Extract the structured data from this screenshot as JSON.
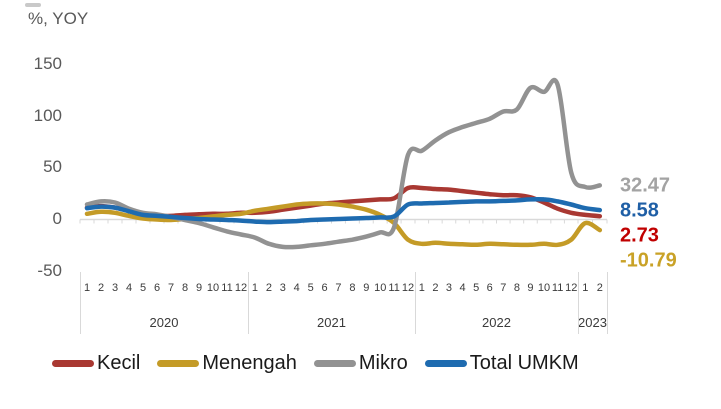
{
  "chart_data": {
    "type": "line",
    "title": "%, YOY",
    "y_ticks": [
      "150",
      "100",
      "50",
      "0",
      "-50"
    ],
    "ylim": [
      -50,
      150
    ],
    "grid": "zero-axis-line-with-month-ticks-only",
    "legend_position": "bottom",
    "x_axis_note": "months grouped by year",
    "year_groups": [
      {
        "label": "2020",
        "months": [
          "1",
          "2",
          "3",
          "4",
          "5",
          "6",
          "7",
          "8",
          "9",
          "10",
          "11",
          "12"
        ]
      },
      {
        "label": "2021",
        "months": [
          "1",
          "2",
          "3",
          "4",
          "5",
          "6",
          "7",
          "8",
          "9",
          "10",
          "11",
          "12"
        ]
      },
      {
        "label": "2022",
        "months": [
          "1",
          "2",
          "3",
          "4",
          "5",
          "6",
          "7",
          "8",
          "9",
          "10",
          "11",
          "12"
        ]
      },
      {
        "label": "2023",
        "months": [
          "1",
          "2"
        ]
      }
    ],
    "series": [
      {
        "name": "Kecil",
        "color": "#a93832",
        "label_color": "#c00000",
        "end_label": "2.73",
        "values": [
          11,
          12.5,
          11,
          8,
          4,
          3,
          3,
          4,
          4.5,
          5,
          5,
          6,
          6,
          7,
          9,
          11,
          13,
          15,
          16,
          17,
          18,
          19,
          20,
          30,
          30,
          29,
          28.5,
          27,
          25.5,
          24,
          23,
          23,
          21,
          16,
          10,
          6,
          4,
          2.73
        ]
      },
      {
        "name": "Menengah",
        "color": "#c49b27",
        "label_color": "#c9a227",
        "end_label": "-10.79",
        "values": [
          5,
          7,
          6,
          3,
          0.5,
          -0.5,
          -1,
          0,
          1,
          2.5,
          4,
          5,
          8,
          10,
          12,
          14,
          15,
          15,
          14,
          12,
          9,
          4,
          -4,
          -20,
          -24,
          -23,
          -24,
          -24.5,
          -25,
          -24,
          -24.5,
          -25,
          -25,
          -24,
          -25,
          -20,
          -4,
          -10.79
        ]
      },
      {
        "name": "Mikro",
        "color": "#929292",
        "label_color": "#a3a3a3",
        "end_label": "32.47",
        "values": [
          14,
          17,
          16,
          10,
          6,
          4.5,
          2,
          -1,
          -4,
          -8,
          -12,
          -15,
          -18,
          -24,
          -27,
          -27,
          -25.5,
          -24,
          -22,
          -20,
          -17,
          -13,
          -8,
          62,
          66,
          76,
          84,
          89,
          93,
          97,
          104,
          106,
          127,
          123,
          130,
          45,
          31,
          32.47
        ]
      },
      {
        "name": "Total UMKM",
        "color": "#1e6bb0",
        "label_color": "#1f5fa6",
        "end_label": "8.58",
        "values": [
          10.5,
          12,
          11,
          7.5,
          4,
          3,
          2,
          1,
          0,
          -0.5,
          -1,
          -1.5,
          -2.5,
          -3,
          -2.5,
          -2,
          -1,
          -0.5,
          0,
          0.5,
          1,
          1.5,
          2.5,
          14,
          15,
          15.5,
          16,
          16.5,
          17,
          17,
          17.5,
          18,
          19,
          19,
          17,
          14,
          10.5,
          8.58
        ]
      }
    ]
  }
}
